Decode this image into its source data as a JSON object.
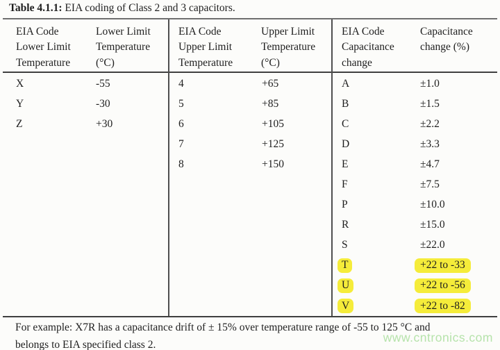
{
  "title": {
    "bold": "Table 4.1.1:",
    "rest": " EIA coding of Class 2 and 3 capacitors."
  },
  "table": {
    "groups": [
      {
        "code_header": "EIA Code Lower Limit Temperature",
        "value_header": "Lower Limit Temperature (°C)",
        "rows": [
          {
            "code": "X",
            "value": "-55"
          },
          {
            "code": "Y",
            "value": "-30"
          },
          {
            "code": "Z",
            "value": "+30"
          }
        ]
      },
      {
        "code_header": "EIA Code Upper Limit Temperature",
        "value_header": "Upper Limit Temperature (°C)",
        "rows": [
          {
            "code": "4",
            "value": "+65"
          },
          {
            "code": "5",
            "value": "+85"
          },
          {
            "code": "6",
            "value": "+105"
          },
          {
            "code": "7",
            "value": "+125"
          },
          {
            "code": "8",
            "value": "+150"
          }
        ]
      },
      {
        "code_header": "EIA Code Capacitance change",
        "value_header": "Capacitance change (%)",
        "rows": [
          {
            "code": "A",
            "value": "±1.0"
          },
          {
            "code": "B",
            "value": "±1.5"
          },
          {
            "code": "C",
            "value": "±2.2"
          },
          {
            "code": "D",
            "value": "±3.3"
          },
          {
            "code": "E",
            "value": "±4.7"
          },
          {
            "code": "F",
            "value": "±7.5"
          },
          {
            "code": "P",
            "value": "±10.0"
          },
          {
            "code": "R",
            "value": "±15.0"
          },
          {
            "code": "S",
            "value": "±22.0"
          },
          {
            "code": "T",
            "value": "+22 to -33",
            "highlighted": true
          },
          {
            "code": "U",
            "value": "+22 to -56",
            "highlighted": true
          },
          {
            "code": "V",
            "value": "+22 to -82",
            "highlighted": true
          }
        ]
      }
    ]
  },
  "footer": {
    "line1": "For example: X7R has a capacitance drift of ± 15% over temperature range of -55 to 125 °C and",
    "line2": "belongs to EIA specified class 2."
  },
  "watermark": {
    "text": "www.cntronics.com"
  },
  "colors": {
    "highlight": "#f5ec3a",
    "watermark": "#b6e3ab",
    "rule": "#3f3f3f",
    "text": "#1e1e1e",
    "background": "#fcfcfa"
  }
}
